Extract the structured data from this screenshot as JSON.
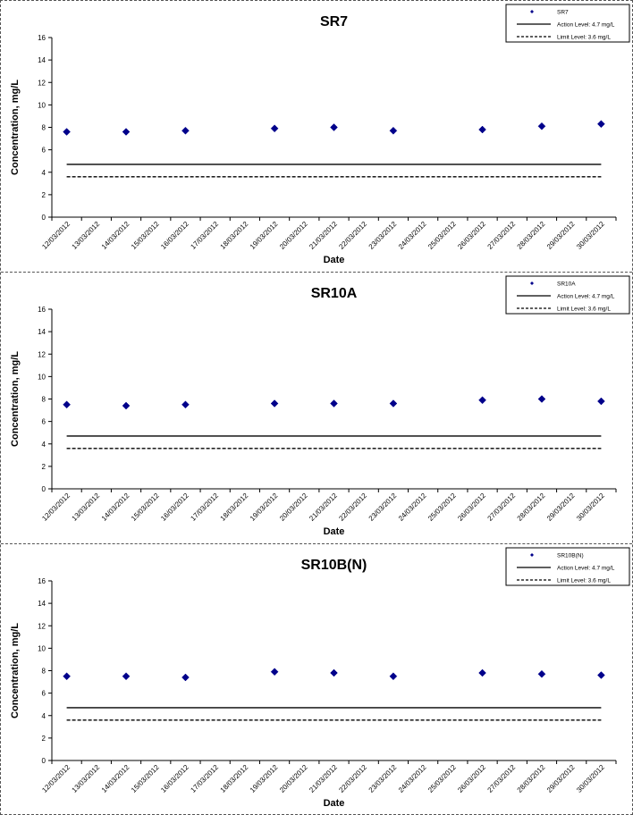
{
  "colors": {
    "marker": "#00008B",
    "line": "#000000"
  },
  "chart_data": [
    {
      "type": "scatter",
      "title": "SR7",
      "xlabel": "Date",
      "ylabel": "Concentration, mg/L",
      "ylim": [
        0,
        16
      ],
      "y_ticks": [
        "0",
        "2",
        "4",
        "6",
        "8",
        "10",
        "12",
        "14",
        "16"
      ],
      "x_ticks": [
        "12/03/2012",
        "13/03/2012",
        "14/03/2012",
        "15/03/2012",
        "16/03/2012",
        "17/03/2012",
        "18/03/2012",
        "19/03/2012",
        "20/03/2012",
        "21/03/2012",
        "22/03/2012",
        "23/03/2012",
        "24/03/2012",
        "25/03/2012",
        "26/03/2012",
        "27/03/2012",
        "28/03/2012",
        "29/03/2012",
        "30/03/2012"
      ],
      "series": [
        {
          "name": "SR7",
          "x": [
            "12/03/2012",
            "14/03/2012",
            "16/03/2012",
            "19/03/2012",
            "21/03/2012",
            "23/03/2012",
            "26/03/2012",
            "28/03/2012",
            "30/03/2012"
          ],
          "values": [
            7.6,
            7.6,
            7.7,
            7.9,
            8.0,
            7.7,
            7.8,
            8.1,
            8.3
          ]
        }
      ],
      "reference_lines": [
        {
          "name": "Action Level: 4.7 mg/L",
          "value": 4.7,
          "style": "solid"
        },
        {
          "name": "Limit Level: 3.6 mg/L",
          "value": 3.6,
          "style": "dashed"
        }
      ],
      "legend_position": "top-right",
      "grid": false
    },
    {
      "type": "scatter",
      "title": "SR10A",
      "xlabel": "Date",
      "ylabel": "Concentration, mg/L",
      "ylim": [
        0,
        16
      ],
      "y_ticks": [
        "0",
        "2",
        "4",
        "6",
        "8",
        "10",
        "12",
        "14",
        "16"
      ],
      "x_ticks": [
        "12/03/2012",
        "13/03/2012",
        "14/03/2012",
        "15/03/2012",
        "16/03/2012",
        "17/03/2012",
        "18/03/2012",
        "19/03/2012",
        "20/03/2012",
        "21/03/2012",
        "22/03/2012",
        "23/03/2012",
        "24/03/2012",
        "25/03/2012",
        "26/03/2012",
        "27/03/2012",
        "28/03/2012",
        "29/03/2012",
        "30/03/2012"
      ],
      "series": [
        {
          "name": "SR10A",
          "x": [
            "12/03/2012",
            "14/03/2012",
            "16/03/2012",
            "19/03/2012",
            "21/03/2012",
            "23/03/2012",
            "26/03/2012",
            "28/03/2012",
            "30/03/2012"
          ],
          "values": [
            7.5,
            7.4,
            7.5,
            7.6,
            7.6,
            7.6,
            7.9,
            8.0,
            7.8
          ]
        }
      ],
      "reference_lines": [
        {
          "name": "Action Level: 4.7 mg/L",
          "value": 4.7,
          "style": "solid"
        },
        {
          "name": "Limit Level: 3.6 mg/L",
          "value": 3.6,
          "style": "dashed"
        }
      ],
      "legend_position": "top-right",
      "grid": false
    },
    {
      "type": "scatter",
      "title": "SR10B(N)",
      "xlabel": "Date",
      "ylabel": "Concentration, mg/L",
      "ylim": [
        0,
        16
      ],
      "y_ticks": [
        "0",
        "2",
        "4",
        "6",
        "8",
        "10",
        "12",
        "14",
        "16"
      ],
      "x_ticks": [
        "12/03/2012",
        "13/03/2012",
        "14/03/2012",
        "15/03/2012",
        "16/03/2012",
        "17/03/2012",
        "18/03/2012",
        "19/03/2012",
        "20/03/2012",
        "21/03/2012",
        "22/03/2012",
        "23/03/2012",
        "24/03/2012",
        "25/03/2012",
        "26/03/2012",
        "27/03/2012",
        "28/03/2012",
        "29/03/2012",
        "30/03/2012"
      ],
      "series": [
        {
          "name": "SR10B(N)",
          "x": [
            "12/03/2012",
            "14/03/2012",
            "16/03/2012",
            "19/03/2012",
            "21/03/2012",
            "23/03/2012",
            "26/03/2012",
            "28/03/2012",
            "30/03/2012"
          ],
          "values": [
            7.5,
            7.5,
            7.4,
            7.9,
            7.8,
            7.5,
            7.8,
            7.7,
            7.6
          ]
        }
      ],
      "reference_lines": [
        {
          "name": "Action Level: 4.7 mg/L",
          "value": 4.7,
          "style": "solid"
        },
        {
          "name": "Limit Level: 3.6 mg/L",
          "value": 3.6,
          "style": "dashed"
        }
      ],
      "legend_position": "top-right",
      "grid": false
    }
  ]
}
